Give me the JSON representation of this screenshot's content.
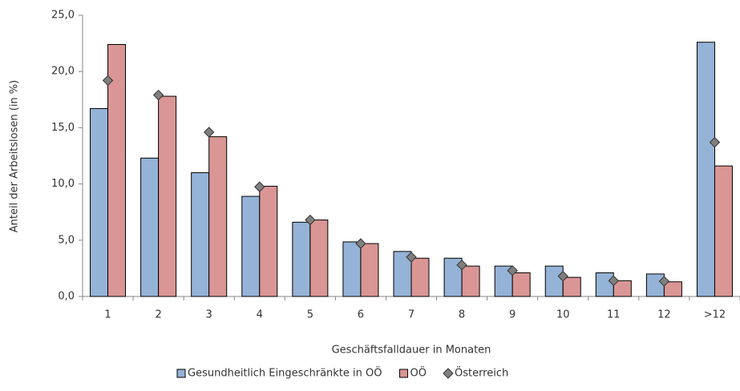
{
  "chart_data": {
    "type": "bar",
    "xlabel": "Geschäftsfalldauer in Monaten",
    "ylabel": "Anteil der Arbeitslosen (in %)",
    "categories": [
      "1",
      "2",
      "3",
      "4",
      "5",
      "6",
      "7",
      "8",
      "9",
      "10",
      "11",
      "12",
      ">12"
    ],
    "series": [
      {
        "name": "Gesundheitlich Eingeschränkte in OÖ",
        "color": "#95b3d7",
        "kind": "bar",
        "values": [
          16.7,
          12.3,
          11.0,
          8.9,
          6.6,
          4.85,
          4.0,
          3.4,
          2.7,
          2.7,
          2.1,
          2.0,
          22.6
        ]
      },
      {
        "name": "OÖ",
        "color": "#d99694",
        "kind": "bar",
        "values": [
          22.4,
          17.8,
          14.2,
          9.8,
          6.8,
          4.7,
          3.4,
          2.7,
          2.1,
          1.7,
          1.4,
          1.3,
          11.6
        ]
      },
      {
        "name": "Österreich",
        "color": "#7f7f7f",
        "kind": "marker",
        "values": [
          19.2,
          17.9,
          14.6,
          9.75,
          6.8,
          4.7,
          3.5,
          2.8,
          2.3,
          1.8,
          1.4,
          1.35,
          13.7
        ]
      }
    ],
    "ylim": [
      0,
      25
    ],
    "yticks": [
      {
        "value": 0,
        "label": "0,0"
      },
      {
        "value": 5,
        "label": "5,0"
      },
      {
        "value": 10,
        "label": "10,0"
      },
      {
        "value": 15,
        "label": "15,0"
      },
      {
        "value": 20,
        "label": "20,0"
      },
      {
        "value": 25,
        "label": "25,0"
      }
    ],
    "grid": false,
    "legend": "bottom"
  }
}
